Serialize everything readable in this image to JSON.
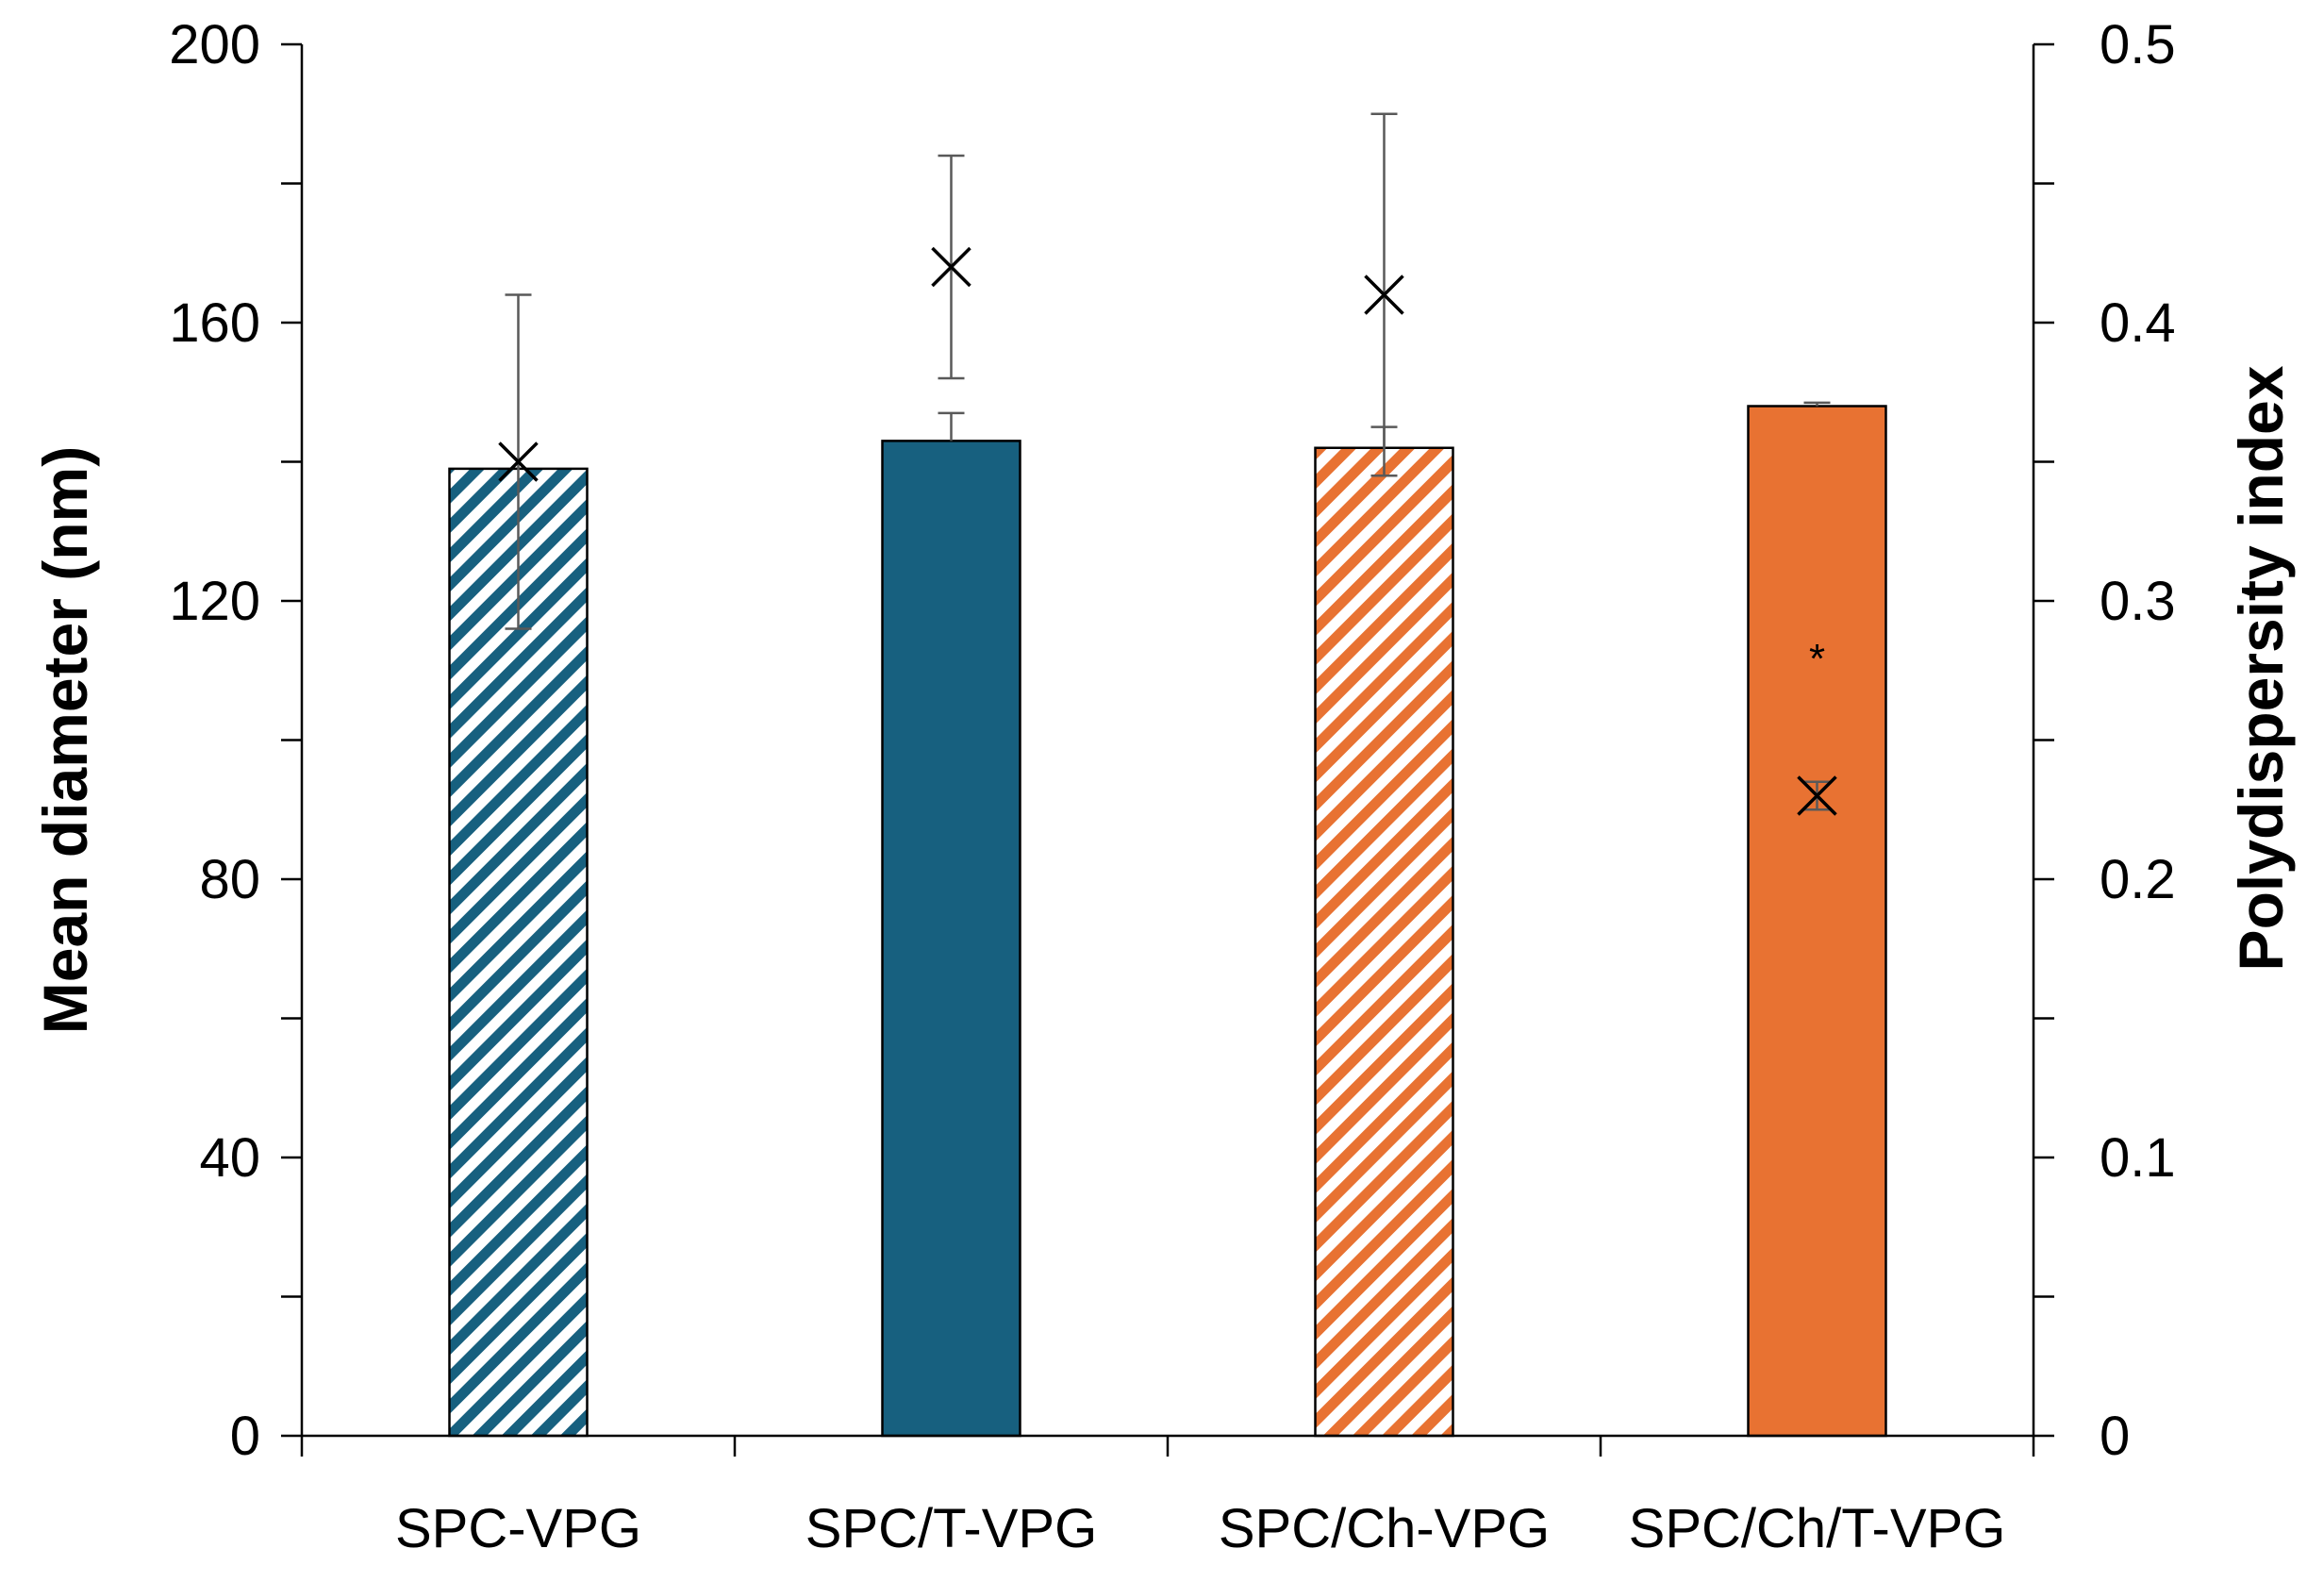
{
  "chart_data": {
    "type": "bar",
    "categories": [
      "SPC-VPG",
      "SPC/T-VPG",
      "SPC/Ch-VPG",
      "SPC/Ch/T-VPG"
    ],
    "series": [
      {
        "name": "Mean diameter (nm)",
        "axis": "left",
        "values": [
          139,
          143,
          142,
          148
        ],
        "errors": [
          0,
          4,
          3,
          0.5
        ],
        "colors": [
          "#17607f",
          "#17607f",
          "#e87232",
          "#e87232"
        ],
        "fill_styles": [
          "hatched",
          "solid",
          "hatched",
          "solid"
        ]
      },
      {
        "name": "Polydispersity index",
        "axis": "right",
        "marker": "x",
        "values": [
          0.35,
          0.42,
          0.41,
          0.23
        ],
        "errors": [
          0.06,
          0.04,
          0.065,
          0.005
        ]
      }
    ],
    "y_left": {
      "label": "Mean diameter (nm)",
      "lim": [
        0,
        200
      ],
      "ticks": [
        0,
        40,
        80,
        120,
        160,
        200
      ],
      "tick_labels": [
        "0",
        "40",
        "80",
        "120",
        "160",
        "200"
      ]
    },
    "y_right": {
      "label": "Polydispersity index",
      "lim": [
        0,
        0.5
      ],
      "ticks": [
        0,
        0.1,
        0.2,
        0.3,
        0.4,
        0.5
      ],
      "tick_labels": [
        "0",
        "0.1",
        "0.2",
        "0.3",
        "0.4",
        "0.5"
      ]
    },
    "annotations": [
      {
        "text": "*",
        "category": "SPC/Ch/T-VPG",
        "axis": "right",
        "value": 0.283
      }
    ],
    "grid": false,
    "legend": "none"
  }
}
